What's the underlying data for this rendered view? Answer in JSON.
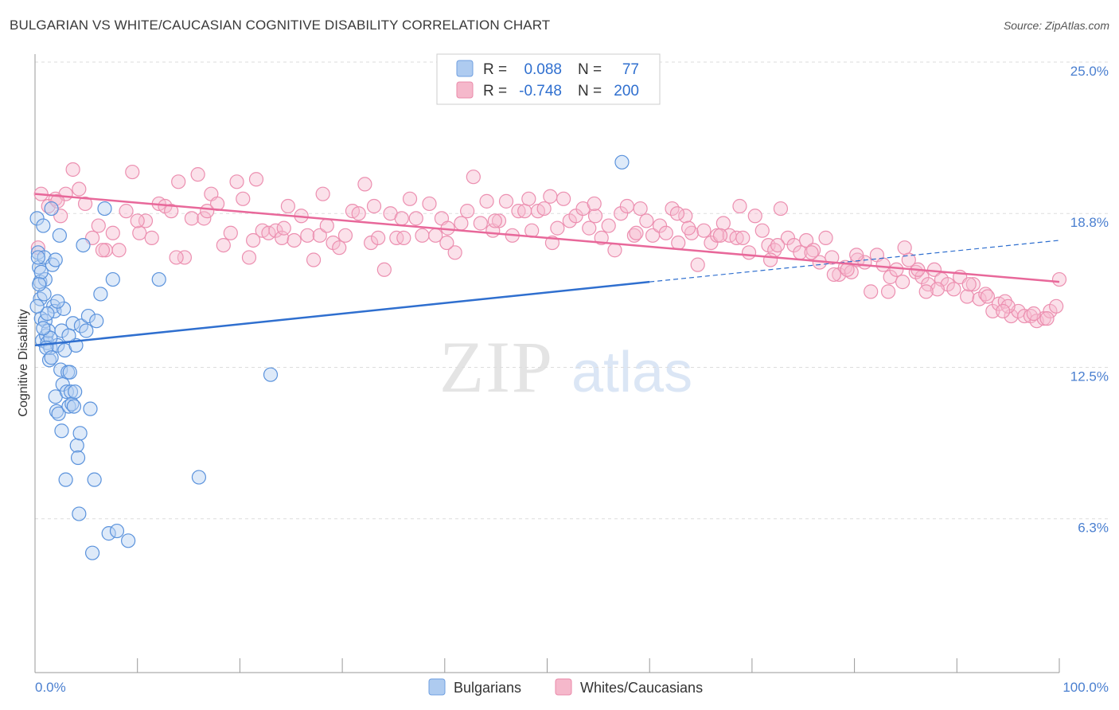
{
  "title": "BULGARIAN VS WHITE/CAUCASIAN COGNITIVE DISABILITY CORRELATION CHART",
  "source": "Source: ZipAtlas.com",
  "watermark": {
    "zip": "ZIP",
    "atlas": "atlas"
  },
  "legend": {
    "rows": [
      {
        "r_label": "R =",
        "r_value": "0.088",
        "n_label": "N =",
        "n_value": "77",
        "color": "#aecbf0"
      },
      {
        "r_label": "R =",
        "r_value": "-0.748",
        "n_label": "N =",
        "n_value": "200",
        "color": "#f5b8cb"
      }
    ]
  },
  "bottom_legend": [
    {
      "label": "Bulgarians",
      "color": "#aecbf0"
    },
    {
      "label": "Whites/Caucasians",
      "color": "#f5b8cb"
    }
  ],
  "colors": {
    "blue": "#4a86d8",
    "blue_line": "#2f6fcf",
    "pink": "#ee8fb0",
    "pink_line": "#e8689a",
    "tick_text": "#4a7fd0"
  },
  "chart_data": {
    "type": "scatter",
    "title": "BULGARIAN VS WHITE/CAUCASIAN COGNITIVE DISABILITY CORRELATION CHART",
    "xlabel": "",
    "ylabel": "Cognitive Disability",
    "xlim": [
      0,
      100
    ],
    "ylim": [
      0,
      25
    ],
    "x_tick_labels": [
      "0.0%",
      "100.0%"
    ],
    "y_ticks": [
      6.3,
      12.5,
      18.8,
      25.0
    ],
    "y_tick_labels": [
      "6.3%",
      "12.5%",
      "18.8%",
      "25.0%"
    ],
    "grid": "horizontal dashed",
    "legend_position": "top-center",
    "series": [
      {
        "name": "Bulgarians",
        "r": 0.088,
        "n": 77,
        "trend": {
          "x0": 0,
          "y0": 13.4,
          "x1": 60,
          "y1": 16.0,
          "dashed_to": 100,
          "dashed_y": 17.7
        },
        "points": [
          [
            0.2,
            18.6
          ],
          [
            0.3,
            17.2
          ],
          [
            0.4,
            16.6
          ],
          [
            0.5,
            16.0
          ],
          [
            0.5,
            15.3
          ],
          [
            0.6,
            14.5
          ],
          [
            0.7,
            13.6
          ],
          [
            0.8,
            18.3
          ],
          [
            0.9,
            17.0
          ],
          [
            1.0,
            16.1
          ],
          [
            1.0,
            14.4
          ],
          [
            1.1,
            13.8
          ],
          [
            1.2,
            13.5
          ],
          [
            1.3,
            14.0
          ],
          [
            1.4,
            12.8
          ],
          [
            1.5,
            13.3
          ],
          [
            1.6,
            19.0
          ],
          [
            1.7,
            16.7
          ],
          [
            1.8,
            15.0
          ],
          [
            1.9,
            14.8
          ],
          [
            2.0,
            16.9
          ],
          [
            2.0,
            11.3
          ],
          [
            2.1,
            10.7
          ],
          [
            2.2,
            13.4
          ],
          [
            2.3,
            10.6
          ],
          [
            2.4,
            17.9
          ],
          [
            2.5,
            12.4
          ],
          [
            2.6,
            9.9
          ],
          [
            2.7,
            11.8
          ],
          [
            2.8,
            14.9
          ],
          [
            2.9,
            13.2
          ],
          [
            3.0,
            7.9
          ],
          [
            3.1,
            11.5
          ],
          [
            3.2,
            12.3
          ],
          [
            3.3,
            10.9
          ],
          [
            3.4,
            12.3
          ],
          [
            3.5,
            11.5
          ],
          [
            3.6,
            11.0
          ],
          [
            3.7,
            14.3
          ],
          [
            3.8,
            10.9
          ],
          [
            3.9,
            11.5
          ],
          [
            4.0,
            13.4
          ],
          [
            4.1,
            9.3
          ],
          [
            4.2,
            8.8
          ],
          [
            4.3,
            6.5
          ],
          [
            4.4,
            9.8
          ],
          [
            4.5,
            14.2
          ],
          [
            4.7,
            17.5
          ],
          [
            5.0,
            14.0
          ],
          [
            5.2,
            14.6
          ],
          [
            5.4,
            10.8
          ],
          [
            5.6,
            4.9
          ],
          [
            5.8,
            7.9
          ],
          [
            6.0,
            14.4
          ],
          [
            6.4,
            15.5
          ],
          [
            6.8,
            19.0
          ],
          [
            7.2,
            5.7
          ],
          [
            7.6,
            16.1
          ],
          [
            8.0,
            5.8
          ],
          [
            9.1,
            5.4
          ],
          [
            12.1,
            16.1
          ],
          [
            16.0,
            8.0
          ],
          [
            23.0,
            12.2
          ],
          [
            57.3,
            20.9
          ],
          [
            0.3,
            17.0
          ],
          [
            0.6,
            16.4
          ],
          [
            0.9,
            15.5
          ],
          [
            1.2,
            14.7
          ],
          [
            1.5,
            13.7
          ],
          [
            0.4,
            15.9
          ],
          [
            0.8,
            14.1
          ],
          [
            1.1,
            13.3
          ],
          [
            1.6,
            12.9
          ],
          [
            2.2,
            15.2
          ],
          [
            2.6,
            14.0
          ],
          [
            3.3,
            13.8
          ],
          [
            0.2,
            15.0
          ]
        ]
      },
      {
        "name": "Whites/Caucasians",
        "r": -0.748,
        "n": 200,
        "trend": {
          "x0": 0,
          "y0": 19.6,
          "x1": 100,
          "y1": 16.0
        },
        "points": [
          [
            0.3,
            17.4
          ],
          [
            0.6,
            19.6
          ],
          [
            1.3,
            19.1
          ],
          [
            2.0,
            19.4
          ],
          [
            2.5,
            18.7
          ],
          [
            3.0,
            19.6
          ],
          [
            3.7,
            20.6
          ],
          [
            4.3,
            19.8
          ],
          [
            4.9,
            19.2
          ],
          [
            5.6,
            17.8
          ],
          [
            6.2,
            18.3
          ],
          [
            6.9,
            17.3
          ],
          [
            7.6,
            18.0
          ],
          [
            8.2,
            17.3
          ],
          [
            8.9,
            18.9
          ],
          [
            9.5,
            20.5
          ],
          [
            10.2,
            18.0
          ],
          [
            10.8,
            18.5
          ],
          [
            11.4,
            17.8
          ],
          [
            12.1,
            19.2
          ],
          [
            12.7,
            19.1
          ],
          [
            13.3,
            18.9
          ],
          [
            14.0,
            20.1
          ],
          [
            14.6,
            17.0
          ],
          [
            15.3,
            18.6
          ],
          [
            15.9,
            20.4
          ],
          [
            16.5,
            18.6
          ],
          [
            17.2,
            19.6
          ],
          [
            17.8,
            19.2
          ],
          [
            18.4,
            17.5
          ],
          [
            19.1,
            18.0
          ],
          [
            19.7,
            20.1
          ],
          [
            20.3,
            19.4
          ],
          [
            20.9,
            17.0
          ],
          [
            21.6,
            20.2
          ],
          [
            22.2,
            18.1
          ],
          [
            22.8,
            18.0
          ],
          [
            23.5,
            18.1
          ],
          [
            24.1,
            17.8
          ],
          [
            24.7,
            19.1
          ],
          [
            25.3,
            17.7
          ],
          [
            26.0,
            18.7
          ],
          [
            26.6,
            17.9
          ],
          [
            27.2,
            16.9
          ],
          [
            27.8,
            17.9
          ],
          [
            28.5,
            18.3
          ],
          [
            29.1,
            17.6
          ],
          [
            29.7,
            17.4
          ],
          [
            30.3,
            17.9
          ],
          [
            31.0,
            18.9
          ],
          [
            31.6,
            18.8
          ],
          [
            32.2,
            20.0
          ],
          [
            32.8,
            17.6
          ],
          [
            33.5,
            17.8
          ],
          [
            34.1,
            16.5
          ],
          [
            34.7,
            18.8
          ],
          [
            35.3,
            17.8
          ],
          [
            36.0,
            17.8
          ],
          [
            36.6,
            19.4
          ],
          [
            37.2,
            18.6
          ],
          [
            37.8,
            17.9
          ],
          [
            38.5,
            19.2
          ],
          [
            39.1,
            17.9
          ],
          [
            39.7,
            18.6
          ],
          [
            40.3,
            18.2
          ],
          [
            41.0,
            17.2
          ],
          [
            41.6,
            18.4
          ],
          [
            42.2,
            18.9
          ],
          [
            42.8,
            20.3
          ],
          [
            43.5,
            18.4
          ],
          [
            44.1,
            19.3
          ],
          [
            44.7,
            18.1
          ],
          [
            45.3,
            18.5
          ],
          [
            46.0,
            19.3
          ],
          [
            46.6,
            17.9
          ],
          [
            47.2,
            18.9
          ],
          [
            47.8,
            18.9
          ],
          [
            48.5,
            18.1
          ],
          [
            49.1,
            18.9
          ],
          [
            49.7,
            19.0
          ],
          [
            50.3,
            19.5
          ],
          [
            51.0,
            18.2
          ],
          [
            51.6,
            19.4
          ],
          [
            52.2,
            18.5
          ],
          [
            52.8,
            18.7
          ],
          [
            53.5,
            19.0
          ],
          [
            54.1,
            18.2
          ],
          [
            54.7,
            18.7
          ],
          [
            55.3,
            17.8
          ],
          [
            56.0,
            18.3
          ],
          [
            56.6,
            17.3
          ],
          [
            57.2,
            18.8
          ],
          [
            57.8,
            19.1
          ],
          [
            58.5,
            17.9
          ],
          [
            59.1,
            19.0
          ],
          [
            59.7,
            18.5
          ],
          [
            60.3,
            17.9
          ],
          [
            61.0,
            18.3
          ],
          [
            61.6,
            18.0
          ],
          [
            62.2,
            19.0
          ],
          [
            62.8,
            17.6
          ],
          [
            63.5,
            18.7
          ],
          [
            64.1,
            18.0
          ],
          [
            64.7,
            16.7
          ],
          [
            65.3,
            18.1
          ],
          [
            66.0,
            17.6
          ],
          [
            66.6,
            17.9
          ],
          [
            67.2,
            18.4
          ],
          [
            67.8,
            17.9
          ],
          [
            68.5,
            17.8
          ],
          [
            69.1,
            17.8
          ],
          [
            69.7,
            17.2
          ],
          [
            70.3,
            18.7
          ],
          [
            71.0,
            18.1
          ],
          [
            71.6,
            17.5
          ],
          [
            72.2,
            17.3
          ],
          [
            72.8,
            19.0
          ],
          [
            73.5,
            17.8
          ],
          [
            74.1,
            17.5
          ],
          [
            74.7,
            17.2
          ],
          [
            75.3,
            17.7
          ],
          [
            76.0,
            17.3
          ],
          [
            76.6,
            16.8
          ],
          [
            77.2,
            17.8
          ],
          [
            77.8,
            17.0
          ],
          [
            78.5,
            16.3
          ],
          [
            79.1,
            16.6
          ],
          [
            79.7,
            16.4
          ],
          [
            80.3,
            16.9
          ],
          [
            81.0,
            16.8
          ],
          [
            81.6,
            15.6
          ],
          [
            82.2,
            17.1
          ],
          [
            82.8,
            16.7
          ],
          [
            83.5,
            16.2
          ],
          [
            84.1,
            16.5
          ],
          [
            84.7,
            16.0
          ],
          [
            85.3,
            16.9
          ],
          [
            86.0,
            16.4
          ],
          [
            86.6,
            16.2
          ],
          [
            87.2,
            15.9
          ],
          [
            87.8,
            16.5
          ],
          [
            88.5,
            16.1
          ],
          [
            89.1,
            15.9
          ],
          [
            89.7,
            15.7
          ],
          [
            90.3,
            16.2
          ],
          [
            91.0,
            15.4
          ],
          [
            91.6,
            15.9
          ],
          [
            92.2,
            15.3
          ],
          [
            92.8,
            15.5
          ],
          [
            93.5,
            14.8
          ],
          [
            94.1,
            15.1
          ],
          [
            94.7,
            15.2
          ],
          [
            95.3,
            14.6
          ],
          [
            96.0,
            14.8
          ],
          [
            96.6,
            14.6
          ],
          [
            97.2,
            14.6
          ],
          [
            97.8,
            14.4
          ],
          [
            98.5,
            14.5
          ],
          [
            99.1,
            14.8
          ],
          [
            99.7,
            15.0
          ],
          [
            100.0,
            16.1
          ],
          [
            2.2,
            19.3
          ],
          [
            6.6,
            17.3
          ],
          [
            13.8,
            17.0
          ],
          [
            24.3,
            18.2
          ],
          [
            35.8,
            18.6
          ],
          [
            44.9,
            18.5
          ],
          [
            58.7,
            18.0
          ],
          [
            66.9,
            17.9
          ],
          [
            72.5,
            17.5
          ],
          [
            75.8,
            17.2
          ],
          [
            79.3,
            16.5
          ],
          [
            83.3,
            15.6
          ],
          [
            86.2,
            16.5
          ],
          [
            88.1,
            15.7
          ],
          [
            91.2,
            15.9
          ],
          [
            93.0,
            15.4
          ],
          [
            95.0,
            15.0
          ],
          [
            97.5,
            14.7
          ],
          [
            80.2,
            17.1
          ],
          [
            84.9,
            17.4
          ],
          [
            48.2,
            19.4
          ],
          [
            54.6,
            19.2
          ],
          [
            62.7,
            18.8
          ],
          [
            68.8,
            19.1
          ],
          [
            21.3,
            17.7
          ],
          [
            28.1,
            19.6
          ],
          [
            33.1,
            19.1
          ],
          [
            10.0,
            18.5
          ],
          [
            16.8,
            18.9
          ],
          [
            40.2,
            17.6
          ],
          [
            50.5,
            17.6
          ],
          [
            63.8,
            18.2
          ],
          [
            71.8,
            16.9
          ],
          [
            78.0,
            16.3
          ],
          [
            87.0,
            15.6
          ],
          [
            94.5,
            14.8
          ],
          [
            98.8,
            14.5
          ]
        ]
      }
    ]
  }
}
